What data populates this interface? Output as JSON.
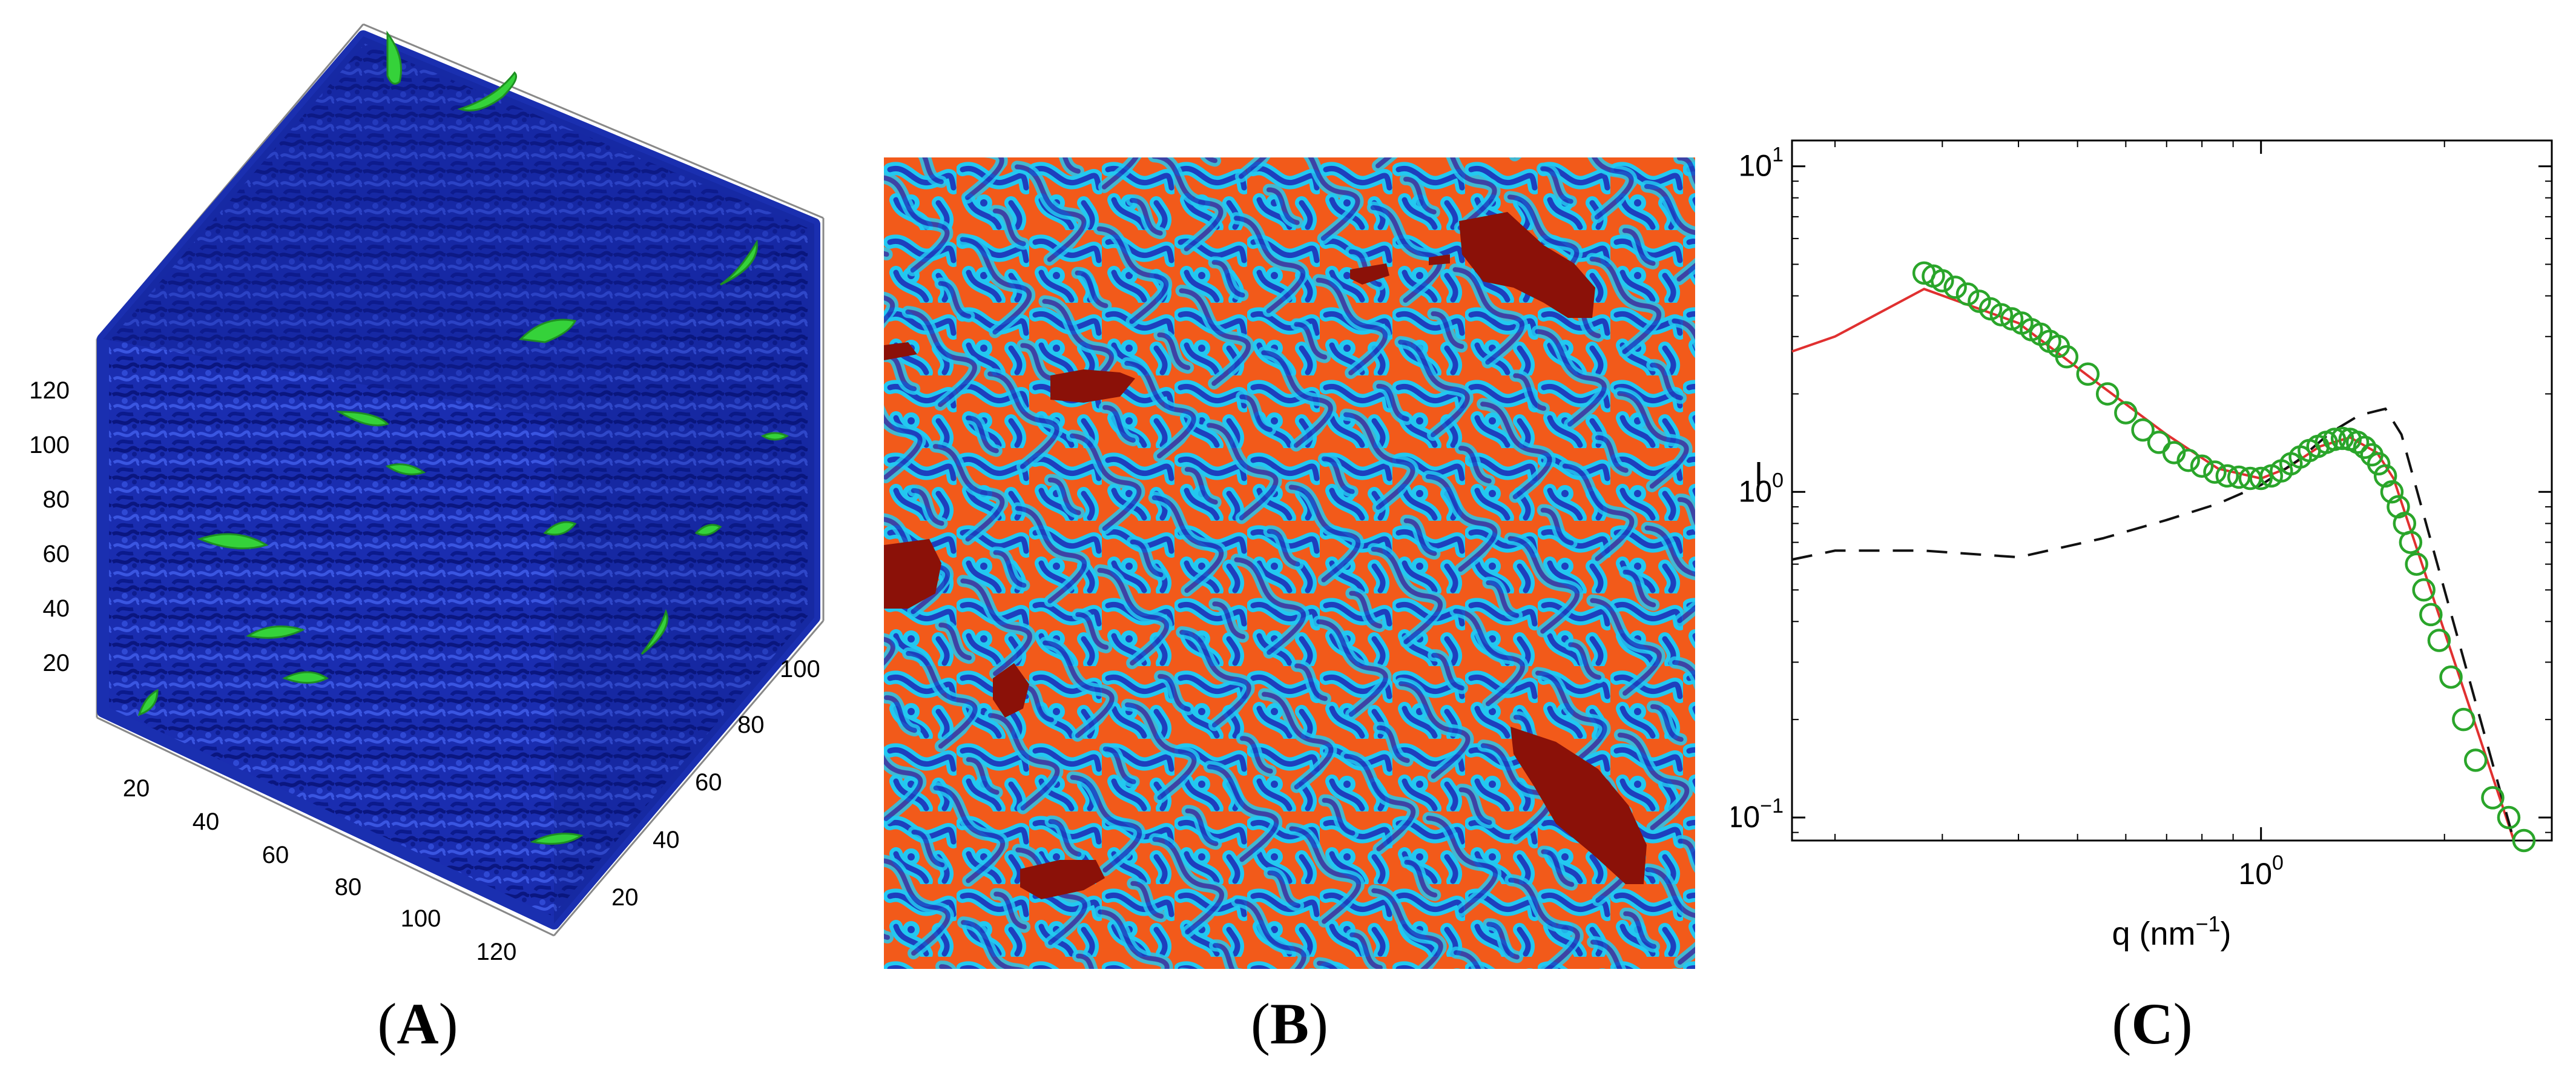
{
  "panels": {
    "a": {
      "caption": "A",
      "axis_ticks": {
        "vertical": [
          "20",
          "40",
          "60",
          "80",
          "100",
          "120"
        ],
        "front_left": [
          "20",
          "40",
          "60",
          "80",
          "100",
          "120"
        ],
        "front_right": [
          "20",
          "40",
          "60",
          "80",
          "100"
        ]
      },
      "colors": {
        "network": "#1a2fb0",
        "inclusions": "#33cc33"
      }
    },
    "b": {
      "caption": "B",
      "colors": {
        "matrix": "#f25a1a",
        "channel_edge": "#1fc8f0",
        "channel_core": "#1e40c0",
        "inclusions": "#8b1108"
      }
    },
    "c": {
      "caption": "C"
    }
  },
  "chart_data": {
    "type": "scatter",
    "title": "",
    "xlabel": "q (nm",
    "xlabel_exponent": "−1",
    "ylabel": "I",
    "xscale": "log",
    "yscale": "log",
    "xlim": [
      0.17,
      3.0
    ],
    "ylim": [
      0.085,
      12
    ],
    "x_ticks": [
      {
        "value": 1,
        "base": "10",
        "exp": "0"
      }
    ],
    "y_ticks": [
      {
        "value": 0.1,
        "base": "10",
        "exp": "−1"
      },
      {
        "value": 1,
        "base": "10",
        "exp": "0"
      },
      {
        "value": 10,
        "base": "10",
        "exp": "1"
      }
    ],
    "series": [
      {
        "style": "circles",
        "color": "#2aa52a",
        "x": [
          0.28,
          0.29,
          0.3,
          0.315,
          0.33,
          0.345,
          0.36,
          0.375,
          0.39,
          0.405,
          0.42,
          0.435,
          0.45,
          0.465,
          0.48,
          0.52,
          0.56,
          0.6,
          0.64,
          0.68,
          0.72,
          0.76,
          0.8,
          0.84,
          0.88,
          0.92,
          0.96,
          1.0,
          1.04,
          1.08,
          1.12,
          1.16,
          1.2,
          1.24,
          1.28,
          1.32,
          1.36,
          1.4,
          1.44,
          1.48,
          1.52,
          1.56,
          1.6,
          1.64,
          1.68,
          1.72,
          1.76,
          1.8,
          1.85,
          1.9,
          1.96,
          2.05,
          2.15,
          2.25,
          2.4,
          2.55,
          2.7
        ],
        "y": [
          4.7,
          4.6,
          4.45,
          4.25,
          4.05,
          3.85,
          3.65,
          3.5,
          3.4,
          3.3,
          3.15,
          3.05,
          2.9,
          2.8,
          2.6,
          2.3,
          2.0,
          1.75,
          1.55,
          1.42,
          1.32,
          1.25,
          1.2,
          1.15,
          1.12,
          1.11,
          1.1,
          1.1,
          1.12,
          1.16,
          1.22,
          1.28,
          1.34,
          1.38,
          1.42,
          1.45,
          1.46,
          1.45,
          1.42,
          1.37,
          1.3,
          1.22,
          1.12,
          1.0,
          0.9,
          0.8,
          0.7,
          0.6,
          0.5,
          0.42,
          0.35,
          0.27,
          0.2,
          0.15,
          0.115,
          0.1,
          0.085
        ]
      },
      {
        "style": "solid-line",
        "color": "#e03030",
        "x": [
          0.17,
          0.2,
          0.28,
          0.4,
          0.55,
          0.7,
          0.85,
          1.0,
          1.1,
          1.25,
          1.4,
          1.55,
          1.65,
          2.6
        ],
        "y": [
          2.7,
          3.0,
          4.2,
          3.3,
          2.1,
          1.5,
          1.18,
          1.1,
          1.18,
          1.38,
          1.47,
          1.32,
          1.1,
          0.085
        ]
      },
      {
        "style": "dashed-line",
        "color": "#111111",
        "x": [
          0.17,
          0.2,
          0.28,
          0.4,
          0.55,
          0.7,
          0.85,
          1.0,
          1.15,
          1.3,
          1.45,
          1.6,
          1.7,
          2.6
        ],
        "y": [
          0.62,
          0.66,
          0.66,
          0.63,
          0.72,
          0.82,
          0.92,
          1.05,
          1.25,
          1.52,
          1.72,
          1.8,
          1.5,
          0.085
        ]
      }
    ]
  }
}
